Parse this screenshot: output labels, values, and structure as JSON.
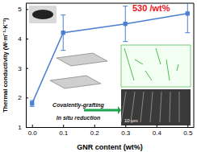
{
  "chart_data": {
    "type": "line",
    "xlabel": "GNR content (wt%)",
    "ylabel": "Thermal conductivity (W·m⁻¹·K⁻¹)",
    "x": [
      0,
      0.1,
      0.3,
      0.5
    ],
    "values": [
      1.8,
      4.2,
      4.5,
      4.85
    ],
    "errors": [
      0.1,
      0.6,
      0.6,
      0.65
    ],
    "color": "#4a7fd4",
    "marker": "square",
    "xlim": [
      -0.02,
      0.52
    ],
    "xticks": [
      {
        "value": 0,
        "label": "0.0"
      },
      {
        "value": 0.1,
        "label": "0.1"
      },
      {
        "value": 0.2,
        "label": "0.2"
      },
      {
        "value": 0.3,
        "label": "0.3"
      },
      {
        "value": 0.4,
        "label": "0.4"
      },
      {
        "value": 0.5,
        "label": "0.5"
      }
    ],
    "ylim": [
      1,
      5.2
    ],
    "yticks": [
      1,
      2,
      3,
      4,
      5
    ],
    "annotations": [
      {
        "text": "530 /wt%",
        "color": "#e8141b"
      },
      {
        "text": "Covalently-grafting"
      },
      {
        "text": "In situ reduction"
      },
      {
        "text": "10 μm"
      }
    ]
  }
}
